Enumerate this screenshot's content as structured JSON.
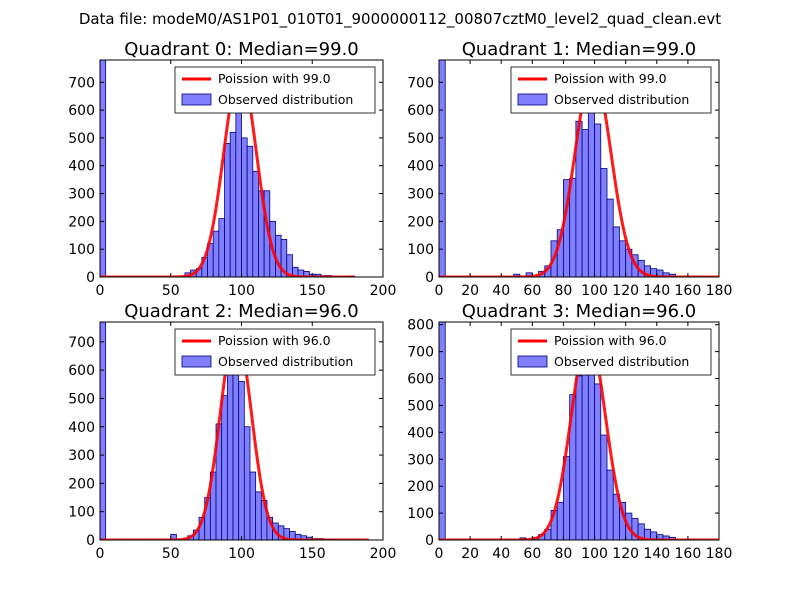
{
  "suptitle": "Data file: modeM0/AS1P01_010T01_9000000112_00807cztM0_level2_quad_clean.evt",
  "colors": {
    "hist_fill": "#8080ff",
    "hist_edge": "#000080",
    "poisson": "#ff0000",
    "axes": "#000000"
  },
  "chart_data": [
    {
      "type": "bar",
      "title": "Quadrant 0: Median=99.0",
      "xlim": [
        0,
        200
      ],
      "ylim": [
        0,
        780
      ],
      "xticks": [
        0,
        50,
        100,
        150,
        200
      ],
      "xtick_labels": [
        "0",
        "50",
        "100",
        "150",
        "200"
      ],
      "yticks": [
        0,
        100,
        200,
        300,
        400,
        500,
        600,
        700
      ],
      "ytick_labels": [
        "0",
        "100",
        "200",
        "300",
        "400",
        "500",
        "600",
        "700"
      ],
      "legend": {
        "line_label": "Poission with 99.0",
        "hist_label": "Observed distribution",
        "position": "upper right"
      },
      "bin_width": 4,
      "bins": [
        {
          "x": 0,
          "y": 780
        },
        {
          "x": 60,
          "y": 15
        },
        {
          "x": 64,
          "y": 25
        },
        {
          "x": 68,
          "y": 30
        },
        {
          "x": 72,
          "y": 70
        },
        {
          "x": 76,
          "y": 120
        },
        {
          "x": 80,
          "y": 165
        },
        {
          "x": 84,
          "y": 210
        },
        {
          "x": 88,
          "y": 480
        },
        {
          "x": 92,
          "y": 520
        },
        {
          "x": 96,
          "y": 700
        },
        {
          "x": 100,
          "y": 500
        },
        {
          "x": 104,
          "y": 470
        },
        {
          "x": 108,
          "y": 380
        },
        {
          "x": 112,
          "y": 310
        },
        {
          "x": 116,
          "y": 310
        },
        {
          "x": 120,
          "y": 200
        },
        {
          "x": 124,
          "y": 150
        },
        {
          "x": 128,
          "y": 135
        },
        {
          "x": 132,
          "y": 80
        },
        {
          "x": 136,
          "y": 35
        },
        {
          "x": 140,
          "y": 25
        },
        {
          "x": 144,
          "y": 20
        },
        {
          "x": 148,
          "y": 10
        },
        {
          "x": 152,
          "y": 10
        },
        {
          "x": 156,
          "y": 5
        },
        {
          "x": 160,
          "y": 5
        },
        {
          "x": 176,
          "y": 3
        }
      ],
      "poisson": {
        "label": "Poission with 99.0",
        "mean": 99.0,
        "peak": 740,
        "sigma": 11.5,
        "xrange": [
          0,
          180
        ]
      }
    },
    {
      "type": "bar",
      "title": "Quadrant 1: Median=99.0",
      "xlim": [
        0,
        180
      ],
      "ylim": [
        0,
        780
      ],
      "xticks": [
        0,
        20,
        40,
        60,
        80,
        100,
        120,
        140,
        160,
        180
      ],
      "xtick_labels": [
        "0",
        "20",
        "40",
        "60",
        "80",
        "100",
        "120",
        "140",
        "160",
        "180"
      ],
      "yticks": [
        0,
        100,
        200,
        300,
        400,
        500,
        600,
        700
      ],
      "ytick_labels": [
        "0",
        "100",
        "200",
        "300",
        "400",
        "500",
        "600",
        "700"
      ],
      "legend": {
        "line_label": "Poission with 99.0",
        "hist_label": "Observed distribution",
        "position": "upper right"
      },
      "bin_width": 4,
      "bins": [
        {
          "x": 0,
          "y": 780
        },
        {
          "x": 48,
          "y": 10
        },
        {
          "x": 56,
          "y": 15
        },
        {
          "x": 64,
          "y": 20
        },
        {
          "x": 68,
          "y": 40
        },
        {
          "x": 72,
          "y": 130
        },
        {
          "x": 76,
          "y": 170
        },
        {
          "x": 80,
          "y": 350
        },
        {
          "x": 84,
          "y": 355
        },
        {
          "x": 88,
          "y": 560
        },
        {
          "x": 92,
          "y": 530
        },
        {
          "x": 96,
          "y": 600
        },
        {
          "x": 100,
          "y": 550
        },
        {
          "x": 104,
          "y": 390
        },
        {
          "x": 108,
          "y": 280
        },
        {
          "x": 112,
          "y": 180
        },
        {
          "x": 116,
          "y": 130
        },
        {
          "x": 120,
          "y": 100
        },
        {
          "x": 124,
          "y": 80
        },
        {
          "x": 128,
          "y": 60
        },
        {
          "x": 132,
          "y": 40
        },
        {
          "x": 136,
          "y": 30
        },
        {
          "x": 140,
          "y": 25
        },
        {
          "x": 144,
          "y": 15
        },
        {
          "x": 148,
          "y": 10
        }
      ],
      "poisson": {
        "label": "Poission with 99.0",
        "mean": 99.0,
        "peak": 740,
        "sigma": 11.5,
        "xrange": [
          0,
          180
        ]
      }
    },
    {
      "type": "bar",
      "title": "Quadrant 2: Median=96.0",
      "xlim": [
        0,
        200
      ],
      "ylim": [
        0,
        770
      ],
      "xticks": [
        0,
        50,
        100,
        150,
        200
      ],
      "xtick_labels": [
        "0",
        "50",
        "100",
        "150",
        "200"
      ],
      "yticks": [
        0,
        100,
        200,
        300,
        400,
        500,
        600,
        700
      ],
      "ytick_labels": [
        "0",
        "100",
        "200",
        "300",
        "400",
        "500",
        "600",
        "700"
      ],
      "legend": {
        "line_label": "Poission with 96.0",
        "hist_label": "Observed distribution",
        "position": "upper right"
      },
      "bin_width": 4,
      "bins": [
        {
          "x": 0,
          "y": 770
        },
        {
          "x": 50,
          "y": 20
        },
        {
          "x": 62,
          "y": 15
        },
        {
          "x": 66,
          "y": 35
        },
        {
          "x": 70,
          "y": 80
        },
        {
          "x": 74,
          "y": 150
        },
        {
          "x": 78,
          "y": 240
        },
        {
          "x": 82,
          "y": 410
        },
        {
          "x": 86,
          "y": 510
        },
        {
          "x": 90,
          "y": 700
        },
        {
          "x": 94,
          "y": 600
        },
        {
          "x": 98,
          "y": 560
        },
        {
          "x": 102,
          "y": 400
        },
        {
          "x": 106,
          "y": 240
        },
        {
          "x": 110,
          "y": 170
        },
        {
          "x": 114,
          "y": 140
        },
        {
          "x": 118,
          "y": 80
        },
        {
          "x": 122,
          "y": 60
        },
        {
          "x": 126,
          "y": 50
        },
        {
          "x": 130,
          "y": 40
        },
        {
          "x": 134,
          "y": 30
        },
        {
          "x": 138,
          "y": 20
        },
        {
          "x": 142,
          "y": 15
        },
        {
          "x": 146,
          "y": 10
        },
        {
          "x": 150,
          "y": 5
        },
        {
          "x": 154,
          "y": 5
        },
        {
          "x": 158,
          "y": 3
        },
        {
          "x": 162,
          "y": 3
        }
      ],
      "poisson": {
        "label": "Poission with 96.0",
        "mean": 96.0,
        "peak": 740,
        "sigma": 11.0,
        "xrange": [
          0,
          190
        ]
      }
    },
    {
      "type": "bar",
      "title": "Quadrant 3: Median=96.0",
      "xlim": [
        0,
        180
      ],
      "ylim": [
        0,
        810
      ],
      "xticks": [
        0,
        20,
        40,
        60,
        80,
        100,
        120,
        140,
        160,
        180
      ],
      "xtick_labels": [
        "0",
        "20",
        "40",
        "60",
        "80",
        "100",
        "120",
        "140",
        "160",
        "180"
      ],
      "yticks": [
        0,
        100,
        200,
        300,
        400,
        500,
        600,
        700,
        800
      ],
      "ytick_labels": [
        "0",
        "100",
        "200",
        "300",
        "400",
        "500",
        "600",
        "700",
        "800"
      ],
      "legend": {
        "line_label": "Poission with 96.0",
        "hist_label": "Observed distribution",
        "position": "upper right"
      },
      "bin_width": 4,
      "bins": [
        {
          "x": 0,
          "y": 810
        },
        {
          "x": 52,
          "y": 8
        },
        {
          "x": 60,
          "y": 10
        },
        {
          "x": 64,
          "y": 20
        },
        {
          "x": 68,
          "y": 40
        },
        {
          "x": 72,
          "y": 110
        },
        {
          "x": 76,
          "y": 140
        },
        {
          "x": 80,
          "y": 310
        },
        {
          "x": 84,
          "y": 540
        },
        {
          "x": 88,
          "y": 610
        },
        {
          "x": 92,
          "y": 720
        },
        {
          "x": 96,
          "y": 620
        },
        {
          "x": 100,
          "y": 580
        },
        {
          "x": 104,
          "y": 390
        },
        {
          "x": 108,
          "y": 260
        },
        {
          "x": 112,
          "y": 170
        },
        {
          "x": 116,
          "y": 140
        },
        {
          "x": 120,
          "y": 100
        },
        {
          "x": 124,
          "y": 80
        },
        {
          "x": 128,
          "y": 60
        },
        {
          "x": 132,
          "y": 40
        },
        {
          "x": 136,
          "y": 30
        },
        {
          "x": 140,
          "y": 20
        },
        {
          "x": 144,
          "y": 15
        },
        {
          "x": 148,
          "y": 10
        }
      ],
      "poisson": {
        "label": "Poission with 96.0",
        "mean": 96.0,
        "peak": 760,
        "sigma": 11.0,
        "xrange": [
          0,
          180
        ]
      }
    }
  ]
}
